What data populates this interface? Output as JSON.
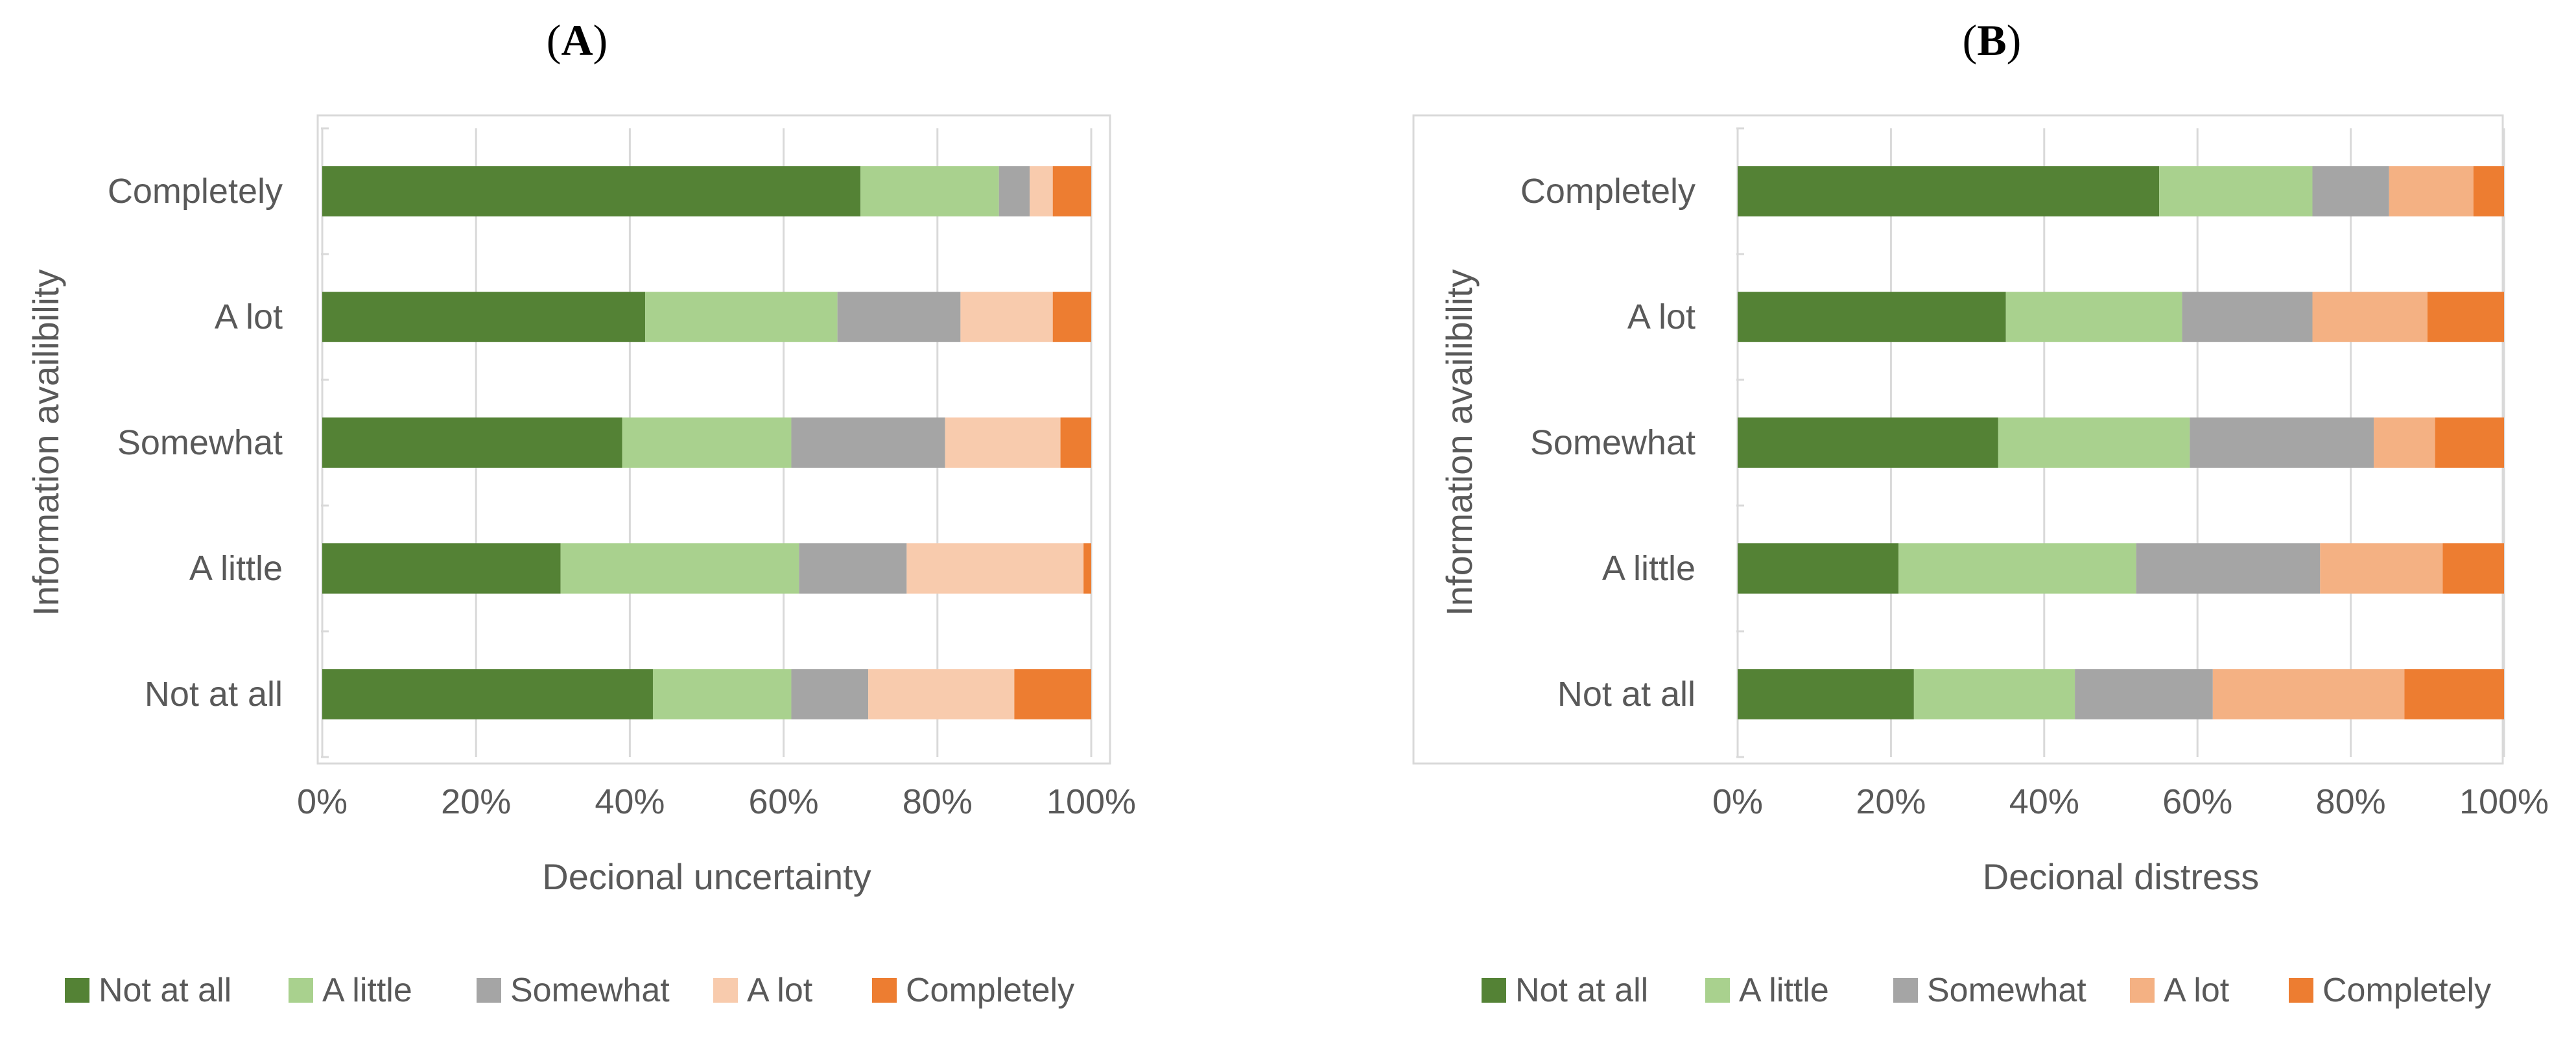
{
  "chart_data": [
    {
      "type": "bar",
      "orientation": "horizontal",
      "stacked": "percent",
      "panel_label": "A",
      "title": "",
      "categories": [
        "Completely",
        "A lot",
        "Somewhat",
        "A little",
        "Not at all"
      ],
      "series": [
        {
          "name": "Not at all",
          "color": "#548235",
          "values": [
            70,
            42,
            39,
            31,
            43
          ]
        },
        {
          "name": "A little",
          "color": "#A9D18E",
          "values": [
            18,
            25,
            22,
            31,
            18
          ]
        },
        {
          "name": "Somewhat",
          "color": "#A5A5A5",
          "values": [
            4,
            16,
            20,
            14,
            10
          ]
        },
        {
          "name": "A lot",
          "color": "#F8CBAD",
          "values": [
            3,
            12,
            15,
            23,
            19
          ]
        },
        {
          "name": "Completely",
          "color": "#ED7D31",
          "values": [
            5,
            5,
            4,
            1,
            10
          ]
        }
      ],
      "xlabel": "Decional uncertainty",
      "ylabel": "Information availibility",
      "xlim": [
        0,
        100
      ],
      "xticks": [
        "0%",
        "20%",
        "40%",
        "60%",
        "80%",
        "100%"
      ],
      "grid": "vertical",
      "legend": "bottom"
    },
    {
      "type": "bar",
      "orientation": "horizontal",
      "stacked": "percent",
      "panel_label": "B",
      "title": "",
      "categories": [
        "Completely",
        "A lot",
        "Somewhat",
        "A little",
        "Not at all"
      ],
      "series": [
        {
          "name": "Not at all",
          "color": "#548235",
          "values": [
            55,
            35,
            34,
            21,
            23
          ]
        },
        {
          "name": "A little",
          "color": "#A9D18E",
          "values": [
            20,
            23,
            25,
            31,
            21
          ]
        },
        {
          "name": "Somewhat",
          "color": "#A5A5A5",
          "values": [
            10,
            17,
            24,
            24,
            18
          ]
        },
        {
          "name": "A lot",
          "color": "#F4B183",
          "values": [
            11,
            15,
            8,
            16,
            25
          ]
        },
        {
          "name": "Completely",
          "color": "#ED7D31",
          "values": [
            4,
            10,
            9,
            8,
            13
          ]
        }
      ],
      "xlabel": "Decional distress",
      "ylabel": "Information availibility",
      "xlim": [
        0,
        100
      ],
      "xticks": [
        "0%",
        "20%",
        "40%",
        "60%",
        "80%",
        "100%"
      ],
      "grid": "vertical",
      "legend": "bottom"
    }
  ]
}
